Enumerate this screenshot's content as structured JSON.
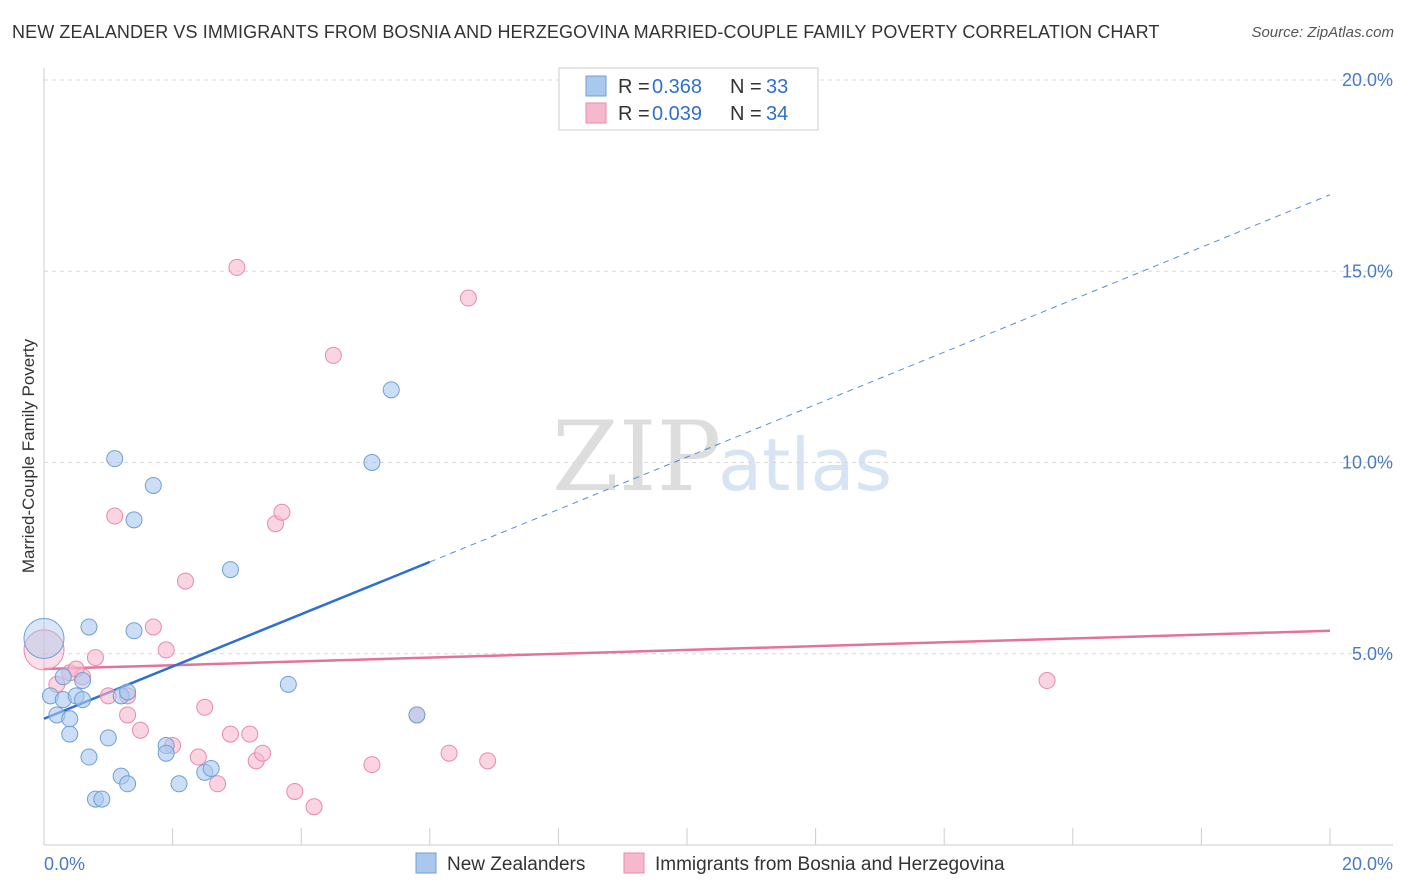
{
  "title": "NEW ZEALANDER VS IMMIGRANTS FROM BOSNIA AND HERZEGOVINA MARRIED-COUPLE FAMILY POVERTY CORRELATION CHART",
  "source": "Source: ZipAtlas.com",
  "watermark": {
    "zip": "ZIP",
    "atlas": "atlas"
  },
  "colors": {
    "blue_fill": "#aac8ee",
    "blue_stroke": "#6f9fd6",
    "blue_line": "#2f6fd0",
    "pink_fill": "#f6b8cd",
    "pink_stroke": "#e98aab",
    "pink_line": "#e4739b",
    "grid": "#d8d8d8",
    "axis": "#cccccc"
  },
  "legend": {
    "rows": [
      {
        "r_label": "R =",
        "r_value": "0.368",
        "n_label": "N =",
        "n_value": "33"
      },
      {
        "r_label": "R =",
        "r_value": "0.039",
        "n_label": "N =",
        "n_value": "34"
      }
    ]
  },
  "chart_data": {
    "type": "scatter",
    "title": "NEW ZEALANDER VS IMMIGRANTS FROM BOSNIA AND HERZEGOVINA MARRIED-COUPLE FAMILY POVERTY CORRELATION CHART",
    "xlabel": "",
    "ylabel": "Married-Couple Family Poverty",
    "xlim": [
      0,
      20
    ],
    "ylim": [
      0,
      20
    ],
    "x_tick_labels": [
      "0.0%",
      "20.0%"
    ],
    "y_tick_values": [
      5,
      10,
      15,
      20
    ],
    "y_tick_labels": [
      "5.0%",
      "10.0%",
      "15.0%",
      "20.0%"
    ],
    "grid": true,
    "legend_position": "top-center",
    "series": [
      {
        "name": "New Zealanders",
        "color": "blue",
        "points": [
          [
            0.0,
            5.4
          ],
          [
            0.1,
            3.9
          ],
          [
            0.2,
            3.4
          ],
          [
            0.3,
            4.4
          ],
          [
            0.3,
            3.8
          ],
          [
            0.4,
            2.9
          ],
          [
            0.4,
            3.3
          ],
          [
            0.5,
            3.9
          ],
          [
            0.6,
            4.3
          ],
          [
            0.6,
            3.8
          ],
          [
            0.7,
            5.7
          ],
          [
            0.7,
            2.3
          ],
          [
            0.8,
            1.2
          ],
          [
            0.9,
            1.2
          ],
          [
            1.0,
            2.8
          ],
          [
            1.1,
            10.1
          ],
          [
            1.2,
            1.8
          ],
          [
            1.2,
            3.9
          ],
          [
            1.3,
            1.6
          ],
          [
            1.3,
            4.0
          ],
          [
            1.4,
            8.5
          ],
          [
            1.4,
            5.6
          ],
          [
            1.7,
            9.4
          ],
          [
            1.9,
            2.6
          ],
          [
            1.9,
            2.4
          ],
          [
            2.1,
            1.6
          ],
          [
            2.5,
            1.9
          ],
          [
            2.6,
            2.0
          ],
          [
            2.9,
            7.2
          ],
          [
            3.8,
            4.2
          ],
          [
            5.1,
            10.0
          ],
          [
            5.4,
            11.9
          ],
          [
            5.8,
            3.4
          ]
        ],
        "trend": {
          "x": [
            0.0,
            6.0
          ],
          "y": [
            3.3,
            7.4
          ],
          "extended_x": [
            6.0,
            20.0
          ],
          "extended_y": [
            7.4,
            17.0
          ]
        }
      },
      {
        "name": "Immigrants from Bosnia and Herzegovina",
        "color": "pink",
        "points": [
          [
            0.0,
            5.1
          ],
          [
            0.2,
            4.2
          ],
          [
            0.4,
            4.5
          ],
          [
            0.6,
            4.4
          ],
          [
            0.8,
            4.9
          ],
          [
            1.0,
            3.9
          ],
          [
            1.1,
            8.6
          ],
          [
            1.3,
            3.9
          ],
          [
            1.3,
            3.4
          ],
          [
            1.5,
            3.0
          ],
          [
            1.7,
            5.7
          ],
          [
            1.9,
            5.1
          ],
          [
            2.0,
            2.6
          ],
          [
            2.2,
            6.9
          ],
          [
            2.4,
            2.3
          ],
          [
            2.5,
            3.6
          ],
          [
            2.7,
            1.6
          ],
          [
            2.9,
            2.9
          ],
          [
            3.0,
            15.1
          ],
          [
            3.2,
            2.9
          ],
          [
            3.3,
            2.2
          ],
          [
            3.4,
            2.4
          ],
          [
            3.6,
            8.4
          ],
          [
            3.7,
            8.7
          ],
          [
            3.9,
            1.4
          ],
          [
            4.2,
            1.0
          ],
          [
            4.5,
            12.8
          ],
          [
            5.1,
            2.1
          ],
          [
            5.8,
            3.4
          ],
          [
            6.3,
            2.4
          ],
          [
            6.6,
            14.3
          ],
          [
            6.9,
            2.2
          ],
          [
            15.6,
            4.3
          ],
          [
            0.5,
            4.6
          ]
        ],
        "trend": {
          "x": [
            0.0,
            20.0
          ],
          "y": [
            4.6,
            5.6
          ]
        }
      }
    ]
  },
  "bottom_legend": [
    {
      "label": "New Zealanders"
    },
    {
      "label": "Immigrants from Bosnia and Herzegovina"
    }
  ]
}
